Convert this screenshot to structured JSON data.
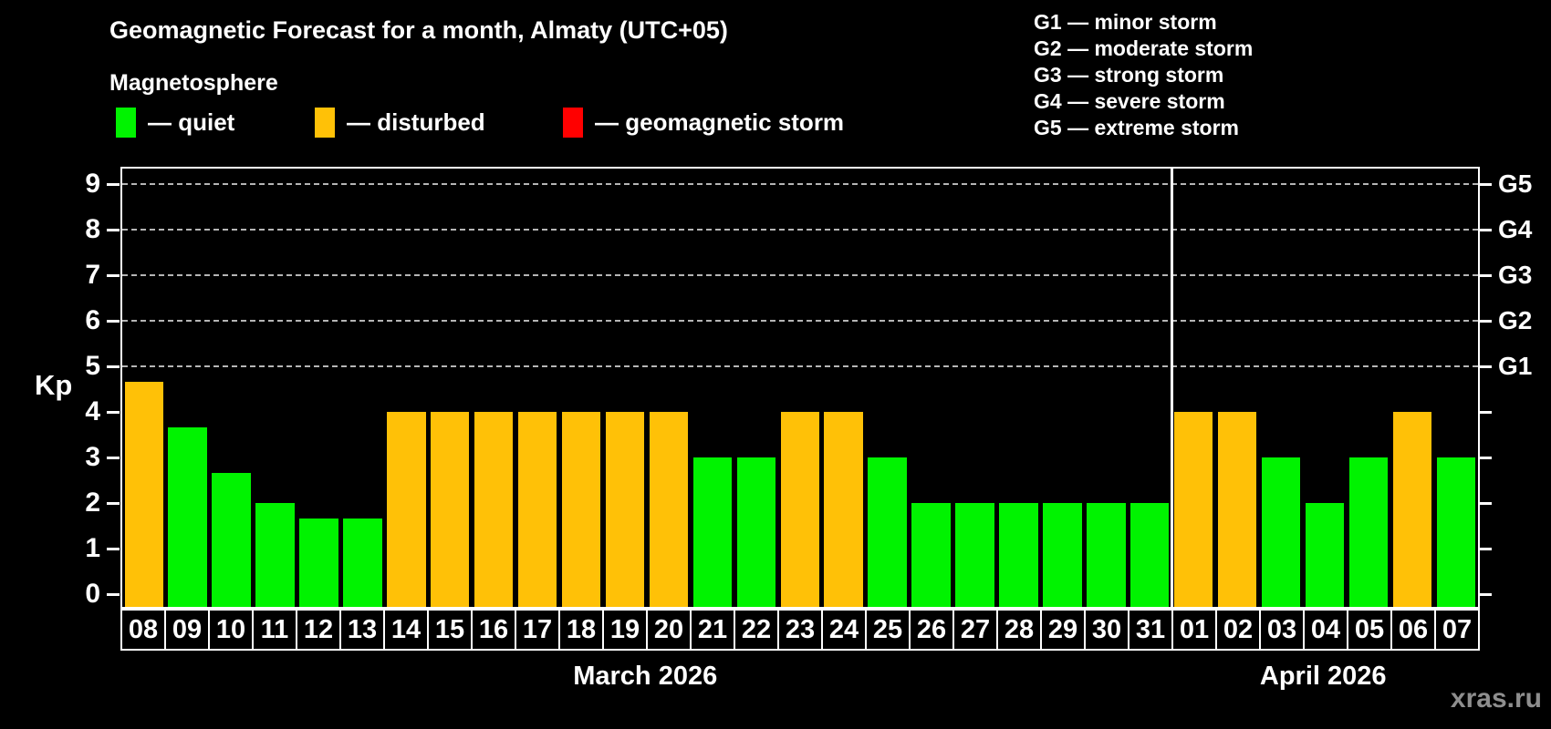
{
  "header": {
    "title": "Geomagnetic Forecast for a month, Almaty (UTC+05)",
    "subtitle": "Magnetosphere"
  },
  "legend": {
    "items": [
      {
        "label": "— quiet",
        "status": "quiet",
        "color": "#00f300"
      },
      {
        "label": "— disturbed",
        "status": "disturbed",
        "color": "#ffc107"
      },
      {
        "label": "— geomagnetic storm",
        "status": "storm",
        "color": "#ff0000"
      }
    ]
  },
  "g_legend": {
    "items": [
      "G1 — minor storm",
      "G2 — moderate storm",
      "G3 — strong storm",
      "G4 — severe storm",
      "G5 — extreme storm"
    ]
  },
  "axis": {
    "kp_label": "Kp"
  },
  "watermark": "xras.ru",
  "chart_data": {
    "type": "bar",
    "title": "Geomagnetic Forecast for a month, Almaty (UTC+05)",
    "ylabel": "Kp",
    "ylim": [
      0,
      9
    ],
    "yticks": [
      0,
      1,
      2,
      3,
      4,
      5,
      6,
      7,
      8,
      9
    ],
    "gridlines_at": [
      5,
      6,
      7,
      8,
      9
    ],
    "grid": "dashed, only at Kp 5-9",
    "legend_position": "top",
    "right_axis_labels": [
      {
        "kp": 5,
        "label": "G1"
      },
      {
        "kp": 6,
        "label": "G2"
      },
      {
        "kp": 7,
        "label": "G3"
      },
      {
        "kp": 8,
        "label": "G4"
      },
      {
        "kp": 9,
        "label": "G5"
      }
    ],
    "months": [
      {
        "label": "March 2026",
        "start_index": 0,
        "days": 24
      },
      {
        "label": "April 2026",
        "start_index": 24,
        "days": 7
      }
    ],
    "status_colors": {
      "quiet": "#00f300",
      "disturbed": "#ffc107",
      "storm": "#ff0000"
    },
    "points": [
      {
        "day": "08",
        "kp": 4.67,
        "status": "disturbed"
      },
      {
        "day": "09",
        "kp": 3.67,
        "status": "quiet"
      },
      {
        "day": "10",
        "kp": 2.67,
        "status": "quiet"
      },
      {
        "day": "11",
        "kp": 2,
        "status": "quiet"
      },
      {
        "day": "12",
        "kp": 1.67,
        "status": "quiet"
      },
      {
        "day": "13",
        "kp": 1.67,
        "status": "quiet"
      },
      {
        "day": "14",
        "kp": 4,
        "status": "disturbed"
      },
      {
        "day": "15",
        "kp": 4,
        "status": "disturbed"
      },
      {
        "day": "16",
        "kp": 4,
        "status": "disturbed"
      },
      {
        "day": "17",
        "kp": 4,
        "status": "disturbed"
      },
      {
        "day": "18",
        "kp": 4,
        "status": "disturbed"
      },
      {
        "day": "19",
        "kp": 4,
        "status": "disturbed"
      },
      {
        "day": "20",
        "kp": 4,
        "status": "disturbed"
      },
      {
        "day": "21",
        "kp": 3,
        "status": "quiet"
      },
      {
        "day": "22",
        "kp": 3,
        "status": "quiet"
      },
      {
        "day": "23",
        "kp": 4,
        "status": "disturbed"
      },
      {
        "day": "24",
        "kp": 4,
        "status": "disturbed"
      },
      {
        "day": "25",
        "kp": 3,
        "status": "quiet"
      },
      {
        "day": "26",
        "kp": 2,
        "status": "quiet"
      },
      {
        "day": "27",
        "kp": 2,
        "status": "quiet"
      },
      {
        "day": "28",
        "kp": 2,
        "status": "quiet"
      },
      {
        "day": "29",
        "kp": 2,
        "status": "quiet"
      },
      {
        "day": "30",
        "kp": 2,
        "status": "quiet"
      },
      {
        "day": "31",
        "kp": 2,
        "status": "quiet"
      },
      {
        "day": "01",
        "kp": 4,
        "status": "disturbed"
      },
      {
        "day": "02",
        "kp": 4,
        "status": "disturbed"
      },
      {
        "day": "03",
        "kp": 3,
        "status": "quiet"
      },
      {
        "day": "04",
        "kp": 2,
        "status": "quiet"
      },
      {
        "day": "05",
        "kp": 3,
        "status": "quiet"
      },
      {
        "day": "06",
        "kp": 4,
        "status": "disturbed"
      },
      {
        "day": "07",
        "kp": 3,
        "status": "quiet"
      }
    ]
  }
}
